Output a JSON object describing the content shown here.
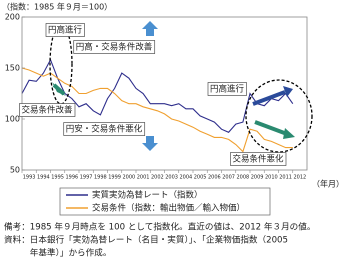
{
  "chart_data": {
    "type": "line",
    "y_label": "（指数：1985 年９月＝100）",
    "x_label": "（年月）",
    "x": [
      1993,
      1993.5,
      1994,
      1994.5,
      1995,
      1995.5,
      1996,
      1996.5,
      1997,
      1997.5,
      1998,
      1998.5,
      1999,
      1999.5,
      2000,
      2000.5,
      2001,
      2001.5,
      2002,
      2002.5,
      2003,
      2003.5,
      2004,
      2004.5,
      2005,
      2005.5,
      2006,
      2006.5,
      2007,
      2007.5,
      2008,
      2008.5,
      2009,
      2009.5,
      2010,
      2010.5,
      2011,
      2011.5,
      2012
    ],
    "series": [
      {
        "name": "実質実効為替レート（指数）",
        "color": "#2e2e8c",
        "values": [
          125,
          138,
          137,
          145,
          158,
          140,
          125,
          120,
          112,
          115,
          108,
          104,
          120,
          130,
          145,
          140,
          130,
          125,
          115,
          115,
          115,
          113,
          115,
          110,
          110,
          103,
          100,
          97,
          90,
          87,
          95,
          97,
          125,
          115,
          113,
          120,
          118,
          125,
          115
        ]
      },
      {
        "name": "交易条件（指数：輸出物価／輸入物価）",
        "color": "#f0a030",
        "values": [
          150,
          148,
          145,
          142,
          145,
          140,
          135,
          132,
          125,
          125,
          128,
          130,
          130,
          125,
          118,
          115,
          115,
          112,
          110,
          108,
          105,
          100,
          98,
          95,
          92,
          88,
          85,
          82,
          82,
          80,
          75,
          68,
          90,
          88,
          80,
          78,
          75,
          72,
          72
        ]
      }
    ],
    "xlim": [
      1993,
      2013
    ],
    "xticks": [
      1993,
      1994,
      1995,
      1996,
      1997,
      1998,
      1999,
      2000,
      2001,
      2002,
      2003,
      2004,
      2005,
      2006,
      2007,
      2008,
      2009,
      2010,
      2011,
      2012
    ],
    "ylim": [
      50,
      200
    ],
    "yticks": [
      50,
      100,
      150,
      200
    ],
    "annotations": [
      "円高進行",
      "円高・交易条件改善",
      "交易条件改善",
      "円安・交易条件悪化",
      "円高進行",
      "交易条件悪化"
    ]
  },
  "notes": [
    "備考：1985 年９月時点を 100 として指数化。直近の値は、2012 年３月の値。",
    "資料：日本銀行「実効為替レート（名目・実質）」、「企業物価指数（2005",
    "　　　年基準）」から作成。"
  ]
}
